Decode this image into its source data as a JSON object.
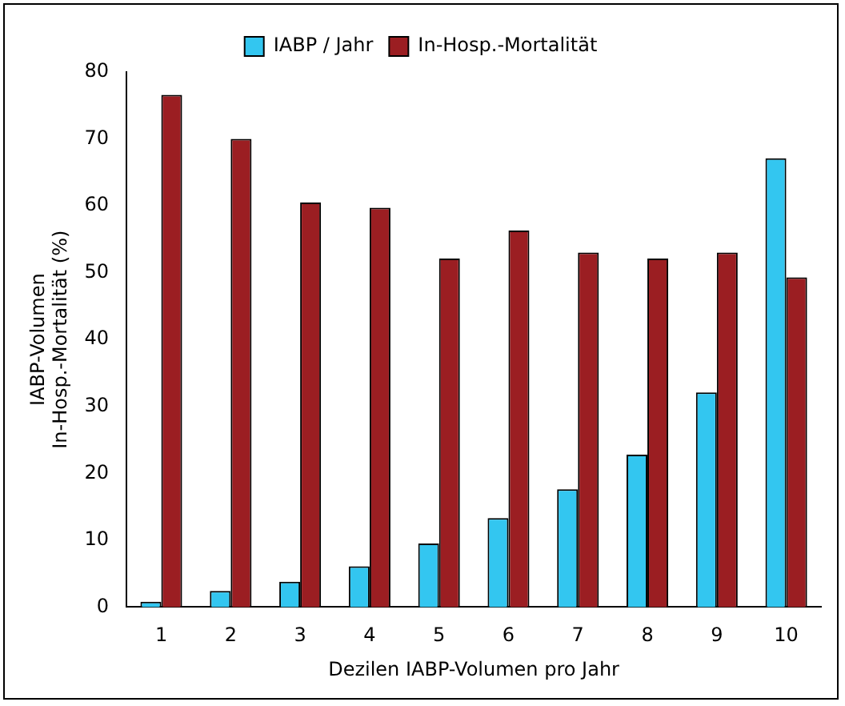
{
  "chart_data": {
    "type": "bar",
    "xlabel": "Dezilen IABP-Volumen pro Jahr",
    "ylabel": "IABP-Volumen\nIn-Hosp.-Mortalität (%)",
    "categories": [
      "1",
      "2",
      "3",
      "4",
      "5",
      "6",
      "7",
      "8",
      "9",
      "10"
    ],
    "series": [
      {
        "name": "IABP / Jahr",
        "color": "#33c6f0",
        "values": [
          0.8,
          2.4,
          3.8,
          6.1,
          9.5,
          13.3,
          17.6,
          22.8,
          32.1,
          67.1
        ]
      },
      {
        "name": "In-Hosp.-Mortalität",
        "color": "#9b1e22",
        "values": [
          76.6,
          70,
          60.5,
          59.7,
          52.1,
          56.3,
          53,
          52.1,
          53,
          49.3
        ]
      }
    ],
    "ylim": [
      0,
      80
    ],
    "yticks": [
      0,
      10,
      20,
      30,
      40,
      50,
      60,
      70,
      80
    ],
    "grid": false,
    "legend": "top"
  }
}
